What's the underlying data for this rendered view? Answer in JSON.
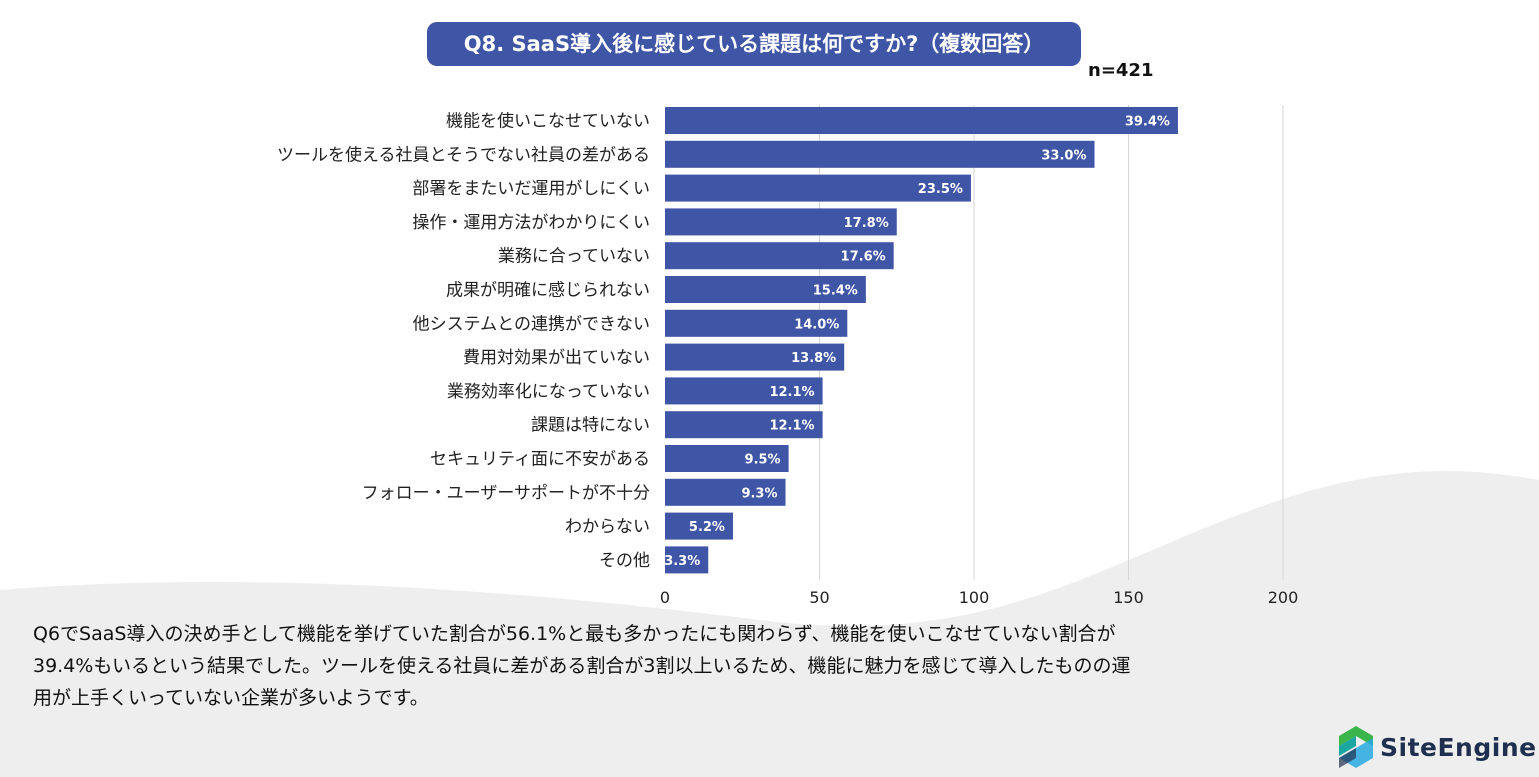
{
  "title": "Q8. SaaS導入後に感じている課題は何ですか?（複数回答）",
  "sample": "n=421",
  "chart_data": {
    "type": "bar",
    "orientation": "horizontal",
    "title": "Q8. SaaS導入後に感じている課題は何ですか?（複数回答）",
    "categories": [
      "機能を使いこなせていない",
      "ツールを使える社員とそうでない社員の差がある",
      "部署をまたいだ運用がしにくい",
      "操作・運用方法がわかりにくい",
      "業務に合っていない",
      "成果が明確に感じられない",
      "他システムとの連携ができない",
      "費用対効果が出ていない",
      "業務効率化になっていない",
      "課題は特にない",
      "セキュリティ面に不安がある",
      "フォロー・ユーザーサポートが不十分",
      "わからない",
      "その他"
    ],
    "values": [
      166,
      139,
      99,
      75,
      74,
      65,
      59,
      58,
      51,
      51,
      40,
      39,
      22,
      14
    ],
    "value_labels": [
      "39.4%",
      "33.0%",
      "23.5%",
      "17.8%",
      "17.6%",
      "15.4%",
      "14.0%",
      "13.8%",
      "12.1%",
      "12.1%",
      "9.5%",
      "9.3%",
      "5.2%",
      "3.3%"
    ],
    "xlim": [
      0,
      200
    ],
    "xticks": [
      "0",
      "50",
      "100",
      "150",
      "200"
    ],
    "grid": true,
    "bar_color": "#3f55a6"
  },
  "summary_lines": [
    "Q6でSaaS導入の決め手として機能を挙げていた割合が56.1%と最も多かったにも関わらず、機能を使いこなせていない割合が",
    "39.4%もいるという結果でした。ツールを使える社員に差がある割合が3割以上いるため、機能に魅力を感じて導入したものの運",
    "用が上手くいっていない企業が多いようです。"
  ],
  "logo": {
    "text": "SiteEngine",
    "icon": "site-engine-logo-icon"
  }
}
